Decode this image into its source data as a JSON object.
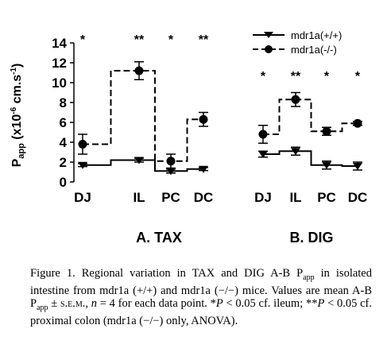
{
  "chart_data": [
    {
      "type": "line",
      "panel_label": "A. TAX",
      "categories": [
        "DJ",
        "IL",
        "PC",
        "DC"
      ],
      "ylim": [
        0,
        14
      ],
      "yticks": [
        0,
        2,
        4,
        6,
        8,
        10,
        12,
        14
      ],
      "ylabel": "P",
      "ylabel_sub": "app",
      "ylabel_tail": " (x10",
      "ylabel_exp": "-6",
      "ylabel_unit": " cm.s",
      "ylabel_unit_exp": "-1",
      "ylabel_close": ")",
      "series": [
        {
          "name": "mdr1a(+/+)",
          "values": [
            1.7,
            2.2,
            1.1,
            1.3
          ],
          "errors": [
            0.15,
            0.2,
            0.2,
            0.15
          ],
          "marker": "triangle-down",
          "dash": "solid"
        },
        {
          "name": "mdr1a(-/-)",
          "values": [
            3.8,
            11.2,
            2.1,
            6.3
          ],
          "errors": [
            1.0,
            0.9,
            0.7,
            0.7
          ],
          "marker": "circle",
          "dash": "dashed"
        }
      ],
      "significance": [
        "*",
        "**",
        "*",
        "**"
      ]
    },
    {
      "type": "line",
      "panel_label": "B. DIG",
      "categories": [
        "DJ",
        "IL",
        "PC",
        "DC"
      ],
      "ylim": [
        0,
        14
      ],
      "series": [
        {
          "name": "mdr1a(+/+)",
          "values": [
            2.8,
            3.1,
            1.7,
            1.6
          ],
          "errors": [
            0.3,
            0.4,
            0.4,
            0.4
          ],
          "marker": "triangle-down",
          "dash": "solid"
        },
        {
          "name": "mdr1a(-/-)",
          "values": [
            4.8,
            8.3,
            5.1,
            5.9
          ],
          "errors": [
            0.9,
            0.7,
            0.4,
            0.2
          ],
          "marker": "circle",
          "dash": "dashed"
        }
      ],
      "significance": [
        "*",
        "**",
        "*",
        "*"
      ]
    }
  ],
  "legend": {
    "placement": "top-right",
    "items": [
      "mdr1a(+/+)",
      "mdr1a(-/-)"
    ]
  },
  "caption": {
    "p1": "Figure 1. Regional variation in TAX and DIG A-B P",
    "p1_sub": "app",
    "p2": " in isolated intestine from mdr1a (+/+) and mdr1a (−/−) mice. Values are mean A-B P",
    "p2_sub": "app",
    "p3": " ± ",
    "p3_sc": "s.e.m.",
    "p4": ", ",
    "p4_it": "n",
    "p5": " = 4 for each data point. *",
    "p5_it": "P",
    "p6": " < 0.05 cf. ileum; **",
    "p6_it": "P",
    "p7": " < 0.05 cf. proximal colon (mdr1a (−/−) only, ANOVA)."
  }
}
